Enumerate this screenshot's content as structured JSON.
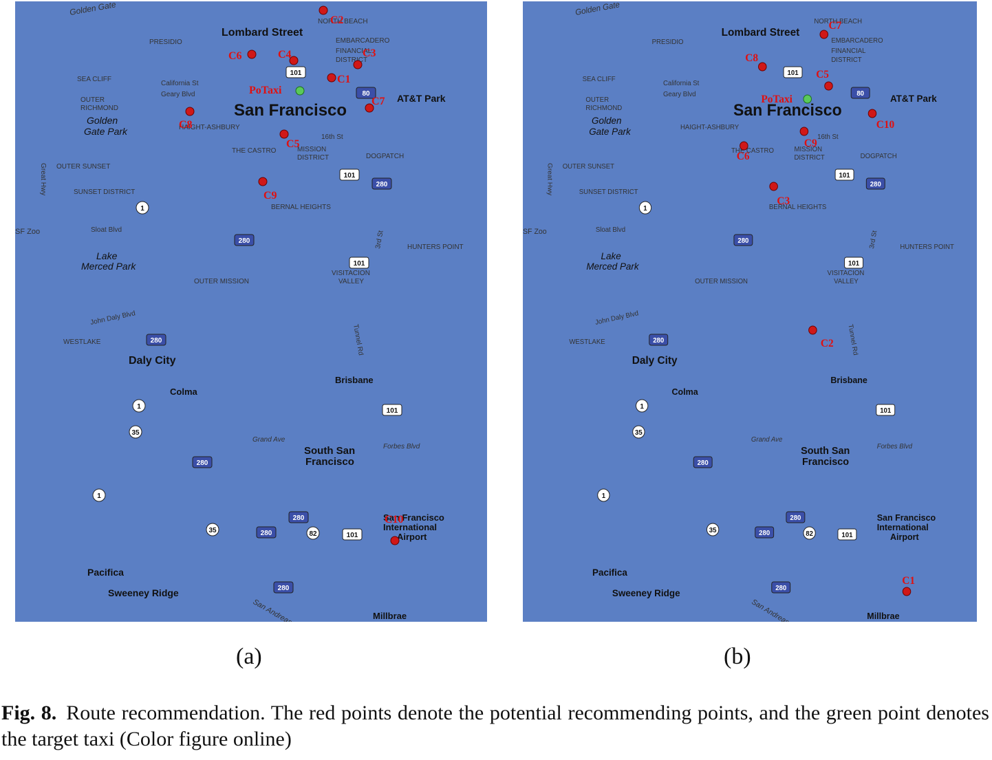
{
  "colors": {
    "water": "#5b7fc4",
    "land": "#cfc7d3",
    "park": "#8ed07a",
    "park_dark": "#5fb04f",
    "highway": "#f19a2e",
    "road": "#ffffff",
    "recommend_point": "#d01818",
    "taxi_point": "#5ac95a",
    "label_red": "#e01010"
  },
  "map_labels": {
    "lombard": "Lombard Street",
    "north_beach": "NORTH BEACH",
    "embarcadero": "EMBARCADERO",
    "financial": "FINANCIAL",
    "district": "DISTRICT",
    "presidio": "PRESIDIO",
    "sea_cliff": "SEA CLIFF",
    "california": "California St",
    "geary": "Geary Blvd",
    "outer_richmond_1": "OUTER",
    "outer_richmond_2": "RICHMOND",
    "golden_gate_1": "Golden",
    "golden_gate_2": "Gate Park",
    "haight": "HAIGHT-ASHBURY",
    "san_francisco": "San Francisco",
    "att_park": "AT&T Park",
    "castro": "THE CASTRO",
    "mission_1": "MISSION",
    "mission_2": "DISTRICT",
    "st16": "16th St",
    "dogpatch": "DOGPATCH",
    "outer_sunset": "OUTER SUNSET",
    "sunset_district": "SUNSET DISTRICT",
    "great_hwy": "Great Hwy",
    "sloat": "Sloat Blvd",
    "zoo": "SF Zoo",
    "bernal": "BERNAL HEIGHTS",
    "hunters": "HUNTERS POINT",
    "lake_merced_1": "Lake",
    "lake_merced_2": "Merced Park",
    "outer_mission": "OUTER MISSION",
    "visitacion_1": "VISITACION",
    "visitacion_2": "VALLEY",
    "john_daly": "John Daly Blvd",
    "westlake": "WESTLAKE",
    "daly_city": "Daly City",
    "colma": "Colma",
    "brisbane": "Brisbane",
    "tunnel": "Tunnel Rd",
    "grand_ave": "Grand Ave",
    "forbes": "Forbes Blvd",
    "ssf_1": "South San",
    "ssf_2": "Francisco",
    "sfo_1": "San Francisco",
    "sfo_2": "International",
    "sfo_3": "Airport",
    "pacifica": "Pacifica",
    "sweeney": "Sweeney Ridge",
    "millbrae": "Millbrae",
    "golden_gate_water": "Golden Gate",
    "san_andreas": "San Andreas",
    "rd3rd": "3rd St",
    "shield_101": "101",
    "shield_280": "280",
    "shield_80": "80",
    "shield_1": "1",
    "shield_35": "35",
    "shield_82": "82"
  },
  "taxi_label": "PoTaxi",
  "panel_a": {
    "label": "(a)",
    "points": [
      {
        "label": "C1"
      },
      {
        "label": "C2"
      },
      {
        "label": "C3"
      },
      {
        "label": "C4"
      },
      {
        "label": "C5"
      },
      {
        "label": "C6"
      },
      {
        "label": "C7"
      },
      {
        "label": "C8"
      },
      {
        "label": "C9"
      },
      {
        "label": "C10"
      }
    ]
  },
  "panel_b": {
    "label": "(b)",
    "points": [
      {
        "label": "C1"
      },
      {
        "label": "C2"
      },
      {
        "label": "C3"
      },
      {
        "label": "C5"
      },
      {
        "label": "C6"
      },
      {
        "label": "C7"
      },
      {
        "label": "C8"
      },
      {
        "label": "C9"
      },
      {
        "label": "C10"
      }
    ]
  },
  "caption": {
    "lead": "Fig. 8.",
    "text": "Route recommendation. The red points denote the potential recommending points, and the green point denotes the target taxi (Color figure online)"
  }
}
